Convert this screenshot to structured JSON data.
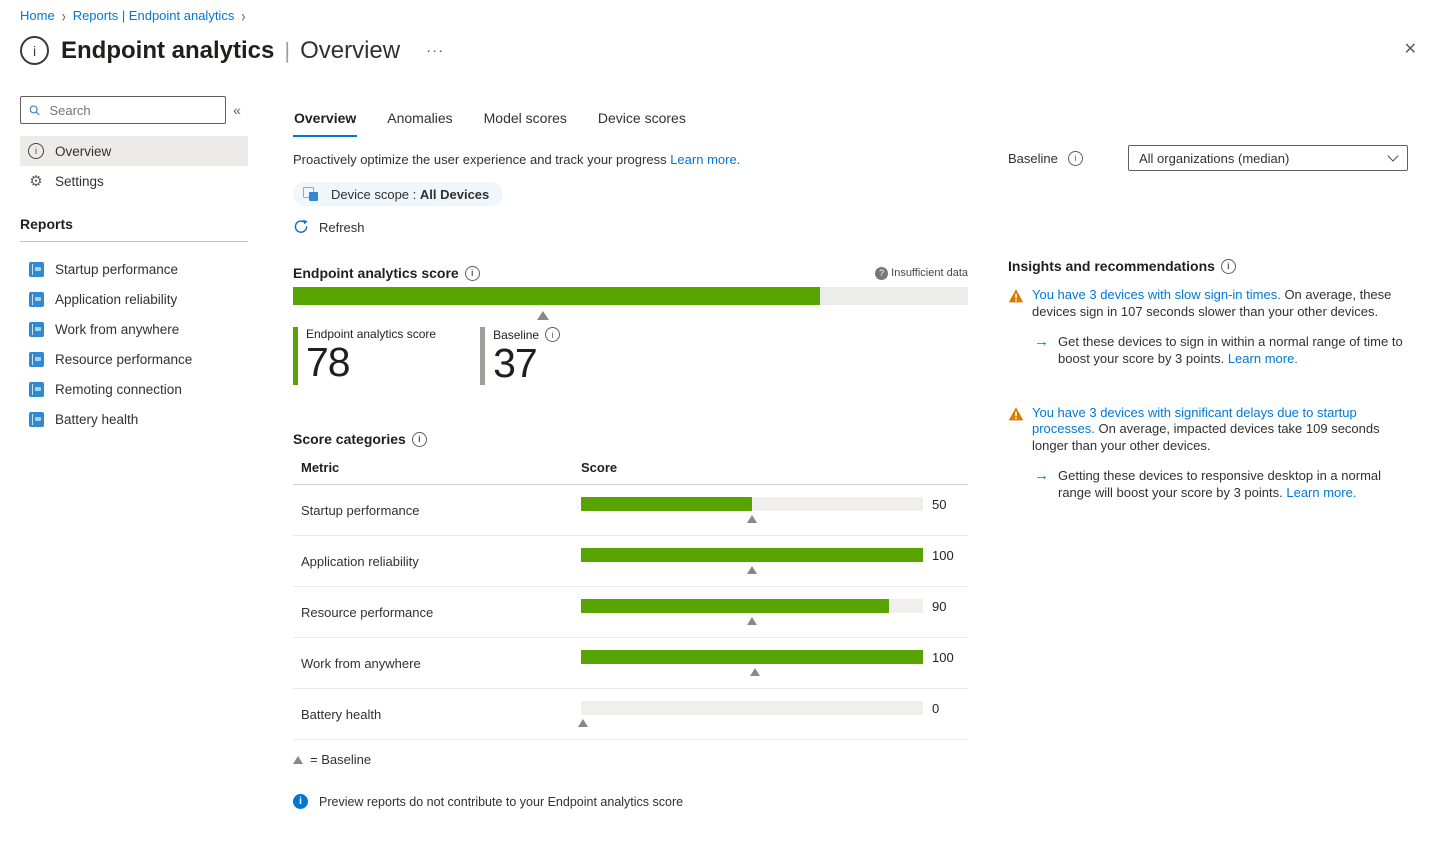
{
  "breadcrumb": {
    "home": "Home",
    "section": "Reports | Endpoint analytics"
  },
  "header": {
    "title": "Endpoint analytics",
    "subtitle": "Overview",
    "more_icon": "···",
    "close_icon": "✕"
  },
  "sidebar": {
    "search_placeholder": "Search",
    "collapse_icon": "«",
    "items": [
      {
        "label": "Overview",
        "selected": true
      },
      {
        "label": "Settings",
        "selected": false
      }
    ],
    "reports_heading": "Reports",
    "reports": [
      "Startup performance",
      "Application reliability",
      "Work from anywhere",
      "Resource performance",
      "Remoting connection",
      "Battery health"
    ]
  },
  "tabs": [
    {
      "label": "Overview",
      "active": true
    },
    {
      "label": "Anomalies",
      "active": false
    },
    {
      "label": "Model scores",
      "active": false
    },
    {
      "label": "Device scores",
      "active": false
    }
  ],
  "main": {
    "description": "Proactively optimize the user experience and track your progress",
    "learn_more": "Learn more.",
    "device_scope_label": "Device scope :",
    "device_scope_value": "All Devices",
    "refresh_label": "Refresh",
    "score_section_title": "Endpoint analytics score",
    "insufficient_data": "Insufficient data",
    "score_stat_label": "Endpoint analytics score",
    "score_value": "78",
    "baseline_stat_label": "Baseline",
    "baseline_value": "37",
    "categories_title": "Score categories",
    "legend_text": "= Baseline",
    "note": "Preview reports do not contribute to your Endpoint analytics score"
  },
  "chart_data": [
    {
      "type": "bar",
      "title": "Endpoint analytics score",
      "value": 78,
      "baseline": 37,
      "xlim": [
        0,
        100
      ]
    },
    {
      "type": "bar",
      "title": "Score categories",
      "columns": [
        "Metric",
        "Score"
      ],
      "categories": [
        "Startup performance",
        "Application reliability",
        "Resource performance",
        "Work from anywhere",
        "Battery health"
      ],
      "values": [
        50,
        100,
        90,
        100,
        0
      ],
      "baselines": [
        50,
        50,
        50,
        51,
        0
      ],
      "xlim": [
        0,
        100
      ],
      "legend": "▲ = Baseline"
    }
  ],
  "baseline_control": {
    "label": "Baseline",
    "value": "All organizations (median)"
  },
  "insights": {
    "title": "Insights and recommendations",
    "items": [
      {
        "link": "You have 3 devices with slow sign-in times.",
        "text": "On average, these devices sign in 107 seconds slower than your other devices.",
        "recommendation": "Get these devices to sign in within a normal range of time to boost your score by 3 points.",
        "rec_link": "Learn more."
      },
      {
        "link": "You have 3 devices with significant delays due to startup processes.",
        "text": "On average, impacted devices take 109 seconds longer than your other devices.",
        "recommendation": "Getting these devices to responsive desktop in a normal range will boost your score by 3 points.",
        "rec_link": "Learn more."
      }
    ]
  },
  "colors": {
    "accent": "#0078d4",
    "score_green": "#57a300",
    "track_gray": "#ececeb",
    "baseline_marker": "#8a8886",
    "warning_orange": "#dc7a00"
  }
}
